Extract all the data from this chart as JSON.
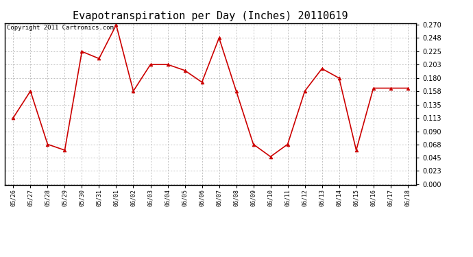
{
  "title": "Evapotranspiration per Day (Inches) 20110619",
  "copyright": "Copyright 2011 Cartronics.com",
  "labels": [
    "05/26",
    "05/27",
    "05/28",
    "05/29",
    "05/30",
    "05/31",
    "06/01",
    "06/02",
    "06/03",
    "06/04",
    "06/05",
    "06/06",
    "06/07",
    "06/08",
    "06/09",
    "06/10",
    "06/11",
    "06/12",
    "06/13",
    "06/14",
    "06/15",
    "06/16",
    "06/17",
    "06/18"
  ],
  "values": [
    0.113,
    0.158,
    0.068,
    0.058,
    0.225,
    0.213,
    0.27,
    0.158,
    0.203,
    0.203,
    0.193,
    0.173,
    0.248,
    0.158,
    0.068,
    0.047,
    0.068,
    0.158,
    0.196,
    0.18,
    0.058,
    0.163,
    0.163,
    0.163
  ],
  "line_color": "#cc0000",
  "marker_color": "#cc0000",
  "background_color": "#ffffff",
  "grid_color": "#aaaaaa",
  "ylim": [
    0.0,
    0.27
  ],
  "yticks": [
    0.0,
    0.023,
    0.045,
    0.068,
    0.09,
    0.113,
    0.135,
    0.158,
    0.18,
    0.203,
    0.225,
    0.248,
    0.27
  ],
  "title_fontsize": 11,
  "copyright_fontsize": 6.5,
  "xtick_fontsize": 6,
  "ytick_fontsize": 7
}
